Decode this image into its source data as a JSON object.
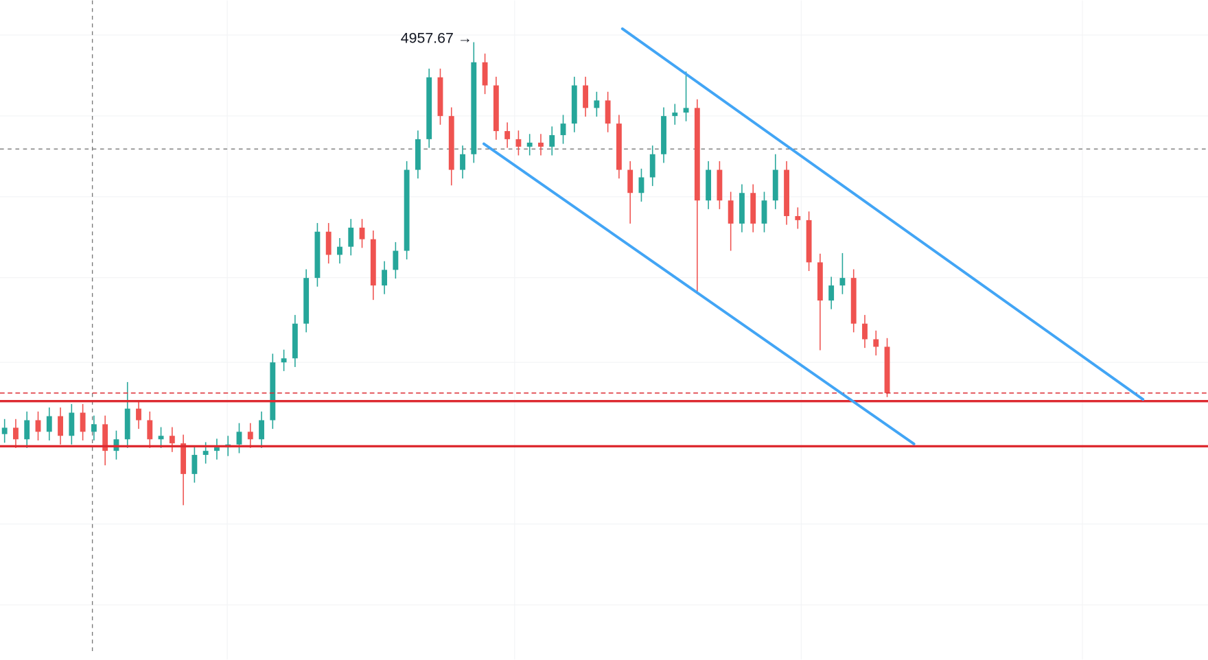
{
  "chart_data": {
    "type": "candlestick",
    "up_color": "#26a69a",
    "down_color": "#ef5350",
    "xlim": [
      -0.41,
      107.72
    ],
    "ylim": [
      3890,
      5030
    ],
    "open": [
      4280,
      4291,
      4271,
      4304,
      4284,
      4311,
      4277,
      4317,
      4284,
      4297,
      4251,
      4271,
      4324,
      4304,
      4271,
      4277,
      4264,
      4211,
      4244,
      4251,
      4257,
      4262,
      4284,
      4271,
      4304,
      4404,
      4411,
      4471,
      4550,
      4630,
      4590,
      4604,
      4637,
      4617,
      4537,
      4564,
      4597,
      4737,
      4790,
      4897,
      4830,
      4737,
      4764,
      4923,
      4883,
      4804,
      4790,
      4777,
      4784,
      4777,
      4797,
      4817,
      4883,
      4844,
      4857,
      4817,
      4737,
      4697,
      4724,
      4764,
      4830,
      4836,
      4844,
      4684,
      4737,
      4684,
      4644,
      4697,
      4644,
      4684,
      4737,
      4657,
      4650,
      4577,
      4511,
      4537,
      4550,
      4471,
      4444,
      4431
    ],
    "high": [
      4306,
      4306,
      4319,
      4319,
      4326,
      4326,
      4332,
      4332,
      4312,
      4312,
      4286,
      4370,
      4339,
      4319,
      4292,
      4292,
      4279,
      4259,
      4266,
      4272,
      4277,
      4299,
      4299,
      4319,
      4419,
      4426,
      4486,
      4565,
      4645,
      4645,
      4619,
      4652,
      4652,
      4632,
      4579,
      4612,
      4752,
      4805,
      4912,
      4912,
      4845,
      4779,
      4957.67,
      4938,
      4898,
      4819,
      4805,
      4799,
      4799,
      4812,
      4832,
      4898,
      4898,
      4872,
      4872,
      4832,
      4752,
      4739,
      4779,
      4845,
      4851,
      4907,
      4859,
      4752,
      4752,
      4699,
      4712,
      4712,
      4699,
      4764,
      4752,
      4672,
      4665,
      4592,
      4552,
      4593,
      4565,
      4486,
      4459,
      4446
    ],
    "low": [
      4265,
      4256,
      4256,
      4269,
      4269,
      4262,
      4262,
      4269,
      4269,
      4226,
      4236,
      4256,
      4289,
      4256,
      4256,
      4249,
      4157,
      4196,
      4229,
      4236,
      4242,
      4247,
      4256,
      4256,
      4289,
      4389,
      4396,
      4456,
      4535,
      4575,
      4575,
      4589,
      4602,
      4512,
      4522,
      4549,
      4582,
      4722,
      4775,
      4815,
      4710,
      4722,
      4749,
      4868,
      4789,
      4775,
      4762,
      4762,
      4762,
      4762,
      4782,
      4802,
      4829,
      4829,
      4802,
      4722,
      4644,
      4682,
      4709,
      4749,
      4815,
      4821,
      4524,
      4669,
      4669,
      4597,
      4629,
      4629,
      4629,
      4669,
      4642,
      4635,
      4562,
      4425,
      4496,
      4522,
      4456,
      4429,
      4416,
      4344
    ],
    "close": [
      4291,
      4271,
      4304,
      4284,
      4311,
      4277,
      4317,
      4284,
      4297,
      4251,
      4271,
      4324,
      4304,
      4271,
      4277,
      4264,
      4211,
      4244,
      4251,
      4257,
      4262,
      4284,
      4271,
      4304,
      4404,
      4411,
      4471,
      4550,
      4630,
      4590,
      4604,
      4637,
      4617,
      4537,
      4564,
      4597,
      4737,
      4790,
      4897,
      4830,
      4737,
      4764,
      4923,
      4883,
      4804,
      4790,
      4777,
      4784,
      4777,
      4797,
      4817,
      4883,
      4844,
      4857,
      4817,
      4737,
      4697,
      4724,
      4764,
      4830,
      4836,
      4844,
      4684,
      4737,
      4684,
      4644,
      4697,
      4644,
      4684,
      4737,
      4657,
      4650,
      4577,
      4511,
      4537,
      4550,
      4471,
      4444,
      4431,
      4351
    ],
    "horizontal_lines": [
      {
        "value": 4337,
        "color": "#dd2a30",
        "style": "solid"
      },
      {
        "value": 4259,
        "color": "#dd2a30",
        "style": "solid"
      },
      {
        "value": 4351,
        "color": "#dd2a30",
        "style": "dashed"
      }
    ],
    "trend_lines": [
      {
        "x": [
          55.3,
          101.9
        ],
        "y": [
          4981,
          4340
        ],
        "color": "#42a5f5"
      },
      {
        "x": [
          42.9,
          81.4
        ],
        "y": [
          4782,
          4263
        ],
        "color": "#42a5f5"
      }
    ],
    "crosshair": {
      "x": 7.86,
      "y": 4773,
      "color": "#777777"
    },
    "annotations": [
      {
        "text": "4957.67 →",
        "x": 42,
        "y": 4957.67
      }
    ]
  }
}
